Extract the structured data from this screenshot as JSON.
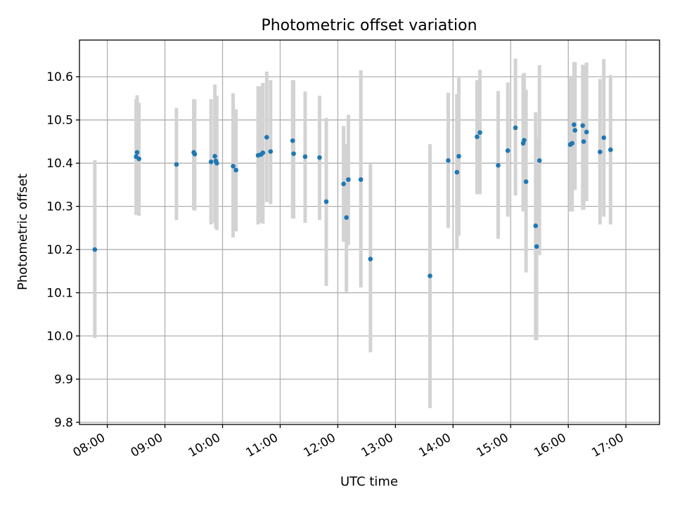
{
  "chart_data": {
    "type": "scatter",
    "title": "Photometric offset variation",
    "xlabel": "UTC time",
    "ylabel": "Photometric offset",
    "xlim": [
      "07:31",
      "17:35"
    ],
    "ylim": [
      9.795,
      10.685
    ],
    "xticks": [
      "08:00",
      "09:00",
      "10:00",
      "11:00",
      "12:00",
      "13:00",
      "14:00",
      "15:00",
      "16:00",
      "17:00"
    ],
    "yticks": [
      "9.8",
      "9.9",
      "10.0",
      "10.1",
      "10.2",
      "10.3",
      "10.4",
      "10.5",
      "10.6"
    ],
    "grid": true,
    "colors": {
      "points": "#1f77b4",
      "error_bars": "#d3d3d3"
    },
    "series": [
      {
        "x": [
          "07:47",
          "08:30",
          "08:31",
          "08:33",
          "09:12",
          "09:30",
          "09:31",
          "09:48",
          "09:52",
          "09:53",
          "09:54",
          "10:11",
          "10:14",
          "10:37",
          "10:40",
          "10:42",
          "10:46",
          "10:50",
          "11:13",
          "11:14",
          "11:26",
          "11:41",
          "11:48",
          "12:06",
          "12:09",
          "12:11",
          "12:24",
          "12:34",
          "13:36",
          "13:55",
          "14:04",
          "14:06",
          "14:25",
          "14:28",
          "14:47",
          "14:57",
          "15:05",
          "15:13",
          "15:14",
          "15:16",
          "15:26",
          "15:27",
          "15:30",
          "16:02",
          "16:04",
          "16:06",
          "16:07",
          "16:15",
          "16:16",
          "16:19",
          "16:33",
          "16:37",
          "16:44"
        ],
        "y": [
          10.2,
          10.415,
          10.425,
          10.41,
          10.397,
          10.425,
          10.421,
          10.403,
          10.416,
          10.405,
          10.4,
          10.393,
          10.384,
          10.418,
          10.42,
          10.424,
          10.46,
          10.427,
          10.452,
          10.422,
          10.415,
          10.413,
          10.311,
          10.352,
          10.274,
          10.362,
          10.362,
          10.178,
          10.139,
          10.406,
          10.379,
          10.416,
          10.461,
          10.471,
          10.395,
          10.429,
          10.482,
          10.446,
          10.453,
          10.357,
          10.255,
          10.207,
          10.406,
          10.443,
          10.446,
          10.489,
          10.476,
          10.487,
          10.45,
          10.472,
          10.426,
          10.459,
          10.431
        ],
        "yerr_low": [
          9.995,
          10.28,
          10.29,
          10.278,
          10.268,
          10.292,
          10.29,
          10.258,
          10.262,
          10.25,
          10.245,
          10.228,
          10.242,
          10.258,
          10.262,
          10.26,
          10.31,
          10.305,
          10.272,
          10.272,
          10.262,
          10.268,
          10.116,
          10.218,
          10.102,
          10.21,
          10.112,
          9.962,
          9.833,
          10.25,
          10.2,
          10.232,
          10.328,
          10.328,
          10.225,
          10.276,
          10.325,
          10.288,
          10.298,
          10.147,
          9.99,
          9.99,
          10.187,
          10.288,
          10.288,
          10.338,
          10.338,
          10.292,
          10.292,
          10.312,
          10.258,
          10.276,
          10.258
        ],
        "yerr_high": [
          10.407,
          10.548,
          10.557,
          10.54,
          10.528,
          10.548,
          10.548,
          10.548,
          10.582,
          10.556,
          10.556,
          10.562,
          10.525,
          10.578,
          10.578,
          10.586,
          10.612,
          10.592,
          10.592,
          10.592,
          10.566,
          10.556,
          10.505,
          10.486,
          10.444,
          10.512,
          10.615,
          10.398,
          10.444,
          10.563,
          10.56,
          10.598,
          10.592,
          10.616,
          10.567,
          10.587,
          10.642,
          10.606,
          10.609,
          10.57,
          10.518,
          10.46,
          10.627,
          10.598,
          10.598,
          10.634,
          10.634,
          10.628,
          10.628,
          10.633,
          10.595,
          10.641,
          10.604
        ]
      }
    ]
  }
}
